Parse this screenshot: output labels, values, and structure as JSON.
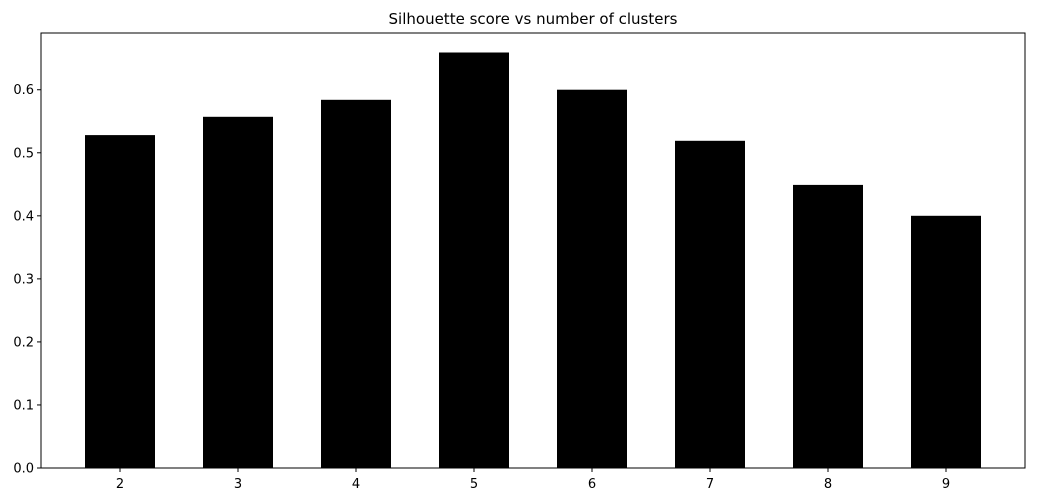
{
  "chart_data": {
    "type": "bar",
    "title": "Silhouette score vs number of clusters",
    "xlabel": "",
    "ylabel": "",
    "categories": [
      "2",
      "3",
      "4",
      "5",
      "6",
      "7",
      "8",
      "9"
    ],
    "values": [
      0.528,
      0.557,
      0.584,
      0.659,
      0.6,
      0.519,
      0.449,
      0.4
    ],
    "ylim": [
      0,
      0.69
    ],
    "yticks": [
      "0.0",
      "0.1",
      "0.2",
      "0.3",
      "0.4",
      "0.5",
      "0.6"
    ],
    "bar_color": "#000000",
    "grid": false,
    "legend": "none"
  }
}
